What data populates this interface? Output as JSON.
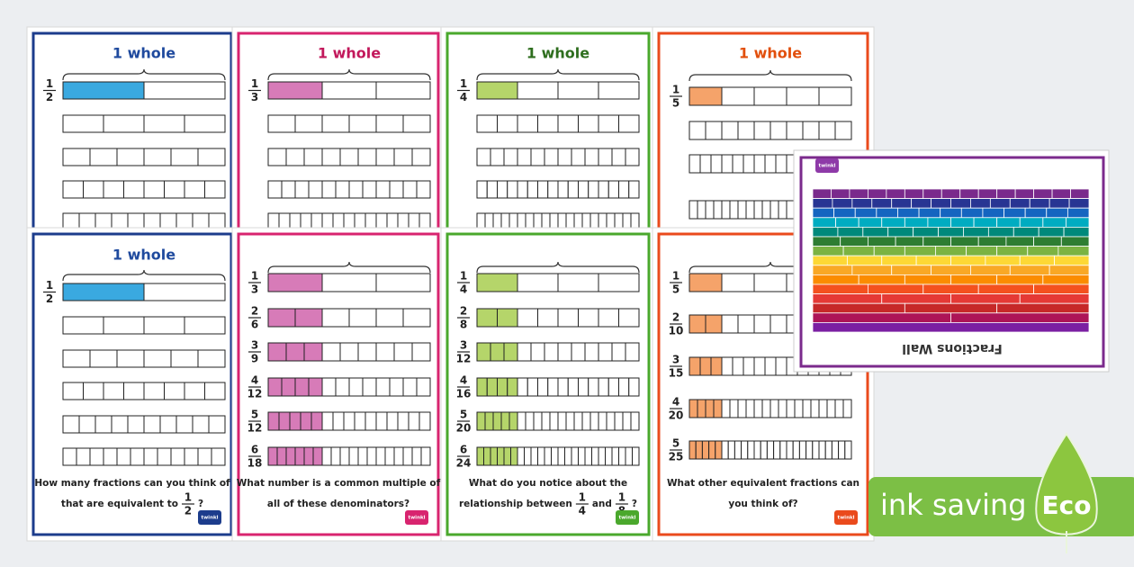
{
  "top_cards": [
    {
      "title": "1 whole",
      "labels": [
        {
          "num": "1",
          "den": "2"
        }
      ]
    },
    {
      "title": "1 whole",
      "labels": [
        {
          "num": "1",
          "den": "3"
        }
      ]
    },
    {
      "title": "1 whole",
      "labels": [
        {
          "num": "1",
          "den": "4"
        }
      ]
    },
    {
      "title": "1 whole",
      "labels": [
        {
          "num": "1",
          "den": "5"
        }
      ]
    }
  ],
  "bottom_cards": [
    {
      "title": "1 whole",
      "labels": [
        {
          "num": "1",
          "den": "2"
        }
      ],
      "question": [
        [
          {
            "text": "How many fractions can you think of"
          }
        ],
        [
          {
            "text": "that are equivalent to"
          },
          {
            "num": "1",
            "den": "2"
          },
          {
            "text": "?"
          }
        ]
      ],
      "logo": "twinkl"
    },
    {
      "labels": [
        {
          "num": "1",
          "den": "3"
        },
        {
          "num": "2",
          "den": "6"
        },
        {
          "num": "3",
          "den": "9"
        },
        {
          "num": "4",
          "den": "12"
        },
        {
          "num": "5",
          "den": "12"
        },
        {
          "num": "6",
          "den": "18"
        }
      ],
      "question": [
        [
          {
            "text": "What number is a common multiple of"
          }
        ],
        [
          {
            "text": "all of these denominators?"
          }
        ]
      ],
      "logo": "twinkl"
    },
    {
      "labels": [
        {
          "num": "1",
          "den": "4"
        },
        {
          "num": "2",
          "den": "8"
        },
        {
          "num": "3",
          "den": "12"
        },
        {
          "num": "4",
          "den": "16"
        },
        {
          "num": "5",
          "den": "20"
        },
        {
          "num": "6",
          "den": "24"
        }
      ],
      "question": [
        [
          {
            "text": "What do you notice about the"
          }
        ],
        [
          {
            "text": "relationship between"
          },
          {
            "num": "1",
            "den": "4"
          },
          {
            "text": "and"
          },
          {
            "num": "1",
            "den": "8"
          },
          {
            "text": "?"
          }
        ]
      ],
      "logo": "twinkl"
    },
    {
      "labels": [
        {
          "num": "1",
          "den": "5"
        },
        {
          "num": "2",
          "den": "10"
        },
        {
          "num": "3",
          "den": "15"
        },
        {
          "num": "4",
          "den": "20"
        },
        {
          "num": "5",
          "den": "25"
        }
      ],
      "question": [
        [
          {
            "text": "What other equivalent fractions can"
          }
        ],
        [
          {
            "text": "you think of?"
          }
        ]
      ],
      "logo": "twinkl"
    }
  ],
  "fractions_wall": {
    "title": "Fractions Wall",
    "logo": "twinkl"
  },
  "badge": {
    "text": "ink saving",
    "eco": "Eco"
  }
}
